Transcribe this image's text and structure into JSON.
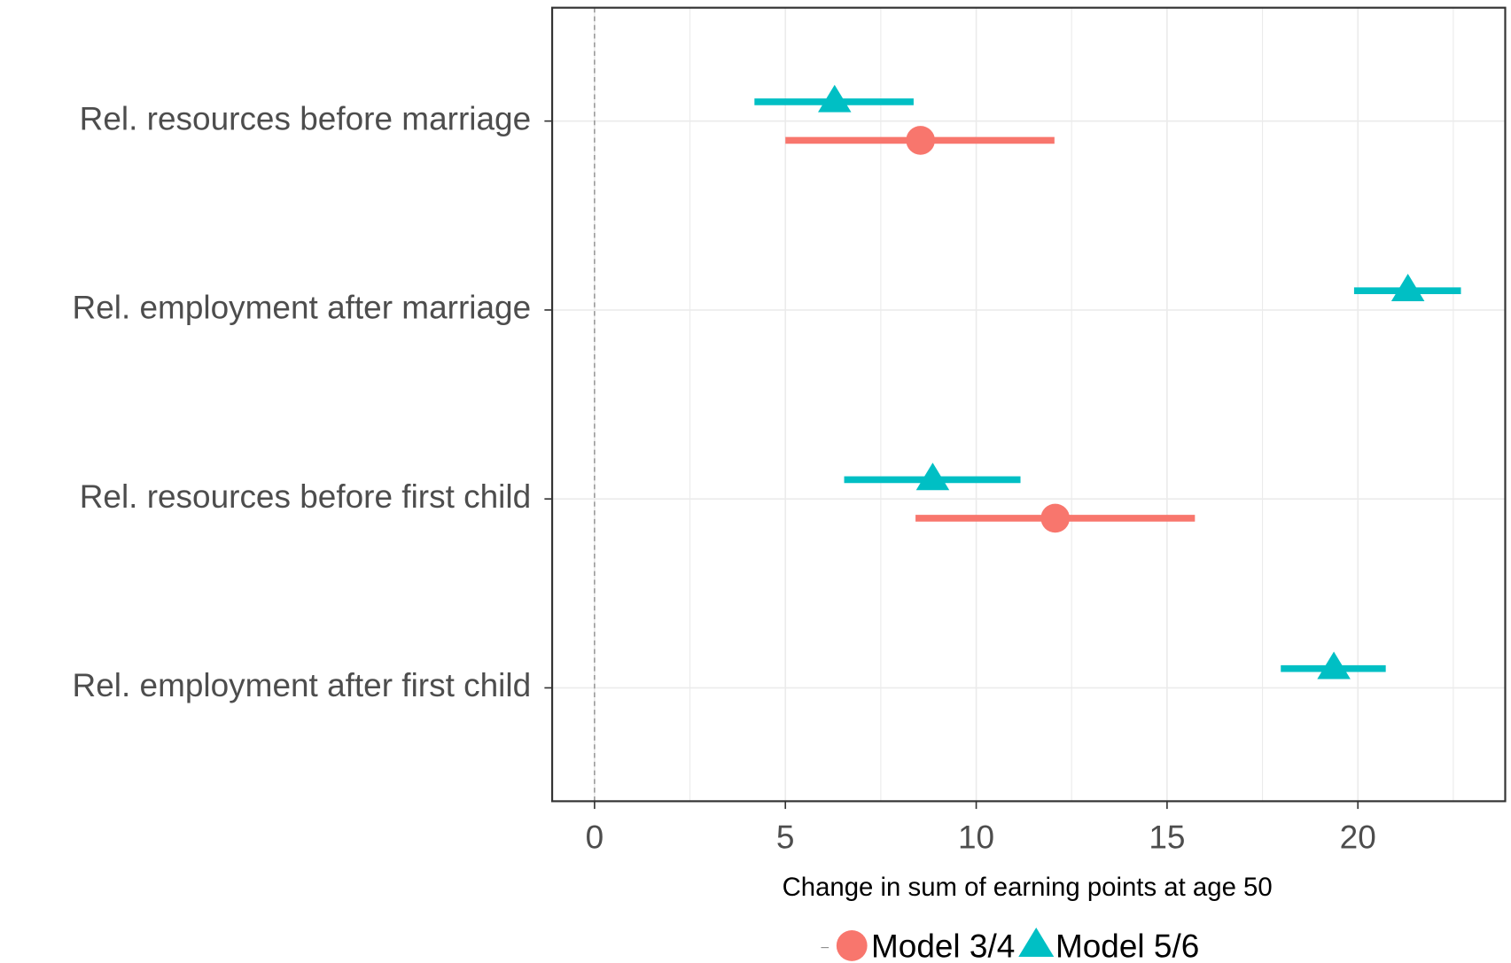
{
  "chart_data": {
    "type": "pointrange",
    "x_label": "Change in sum of earning points at age 50",
    "categories": [
      "Rel. resources before marriage",
      "Rel. employment after marriage",
      "Rel. resources before first child",
      "Rel. employment after first child"
    ],
    "xlim": [
      -1.11,
      23.86
    ],
    "xticks": [
      0,
      5,
      10,
      15,
      20
    ],
    "xminorticks": [
      2.5,
      7.5,
      12.5,
      17.5,
      22.5
    ],
    "vline": 0,
    "grid": true,
    "legend": "bottom",
    "series": [
      {
        "name": "Model 3/4",
        "color": "#F8766D",
        "shape": "circle",
        "values": [
          8.54,
          null,
          12.07,
          null
        ],
        "lower": [
          5.0,
          null,
          8.41,
          null
        ],
        "upper": [
          12.05,
          null,
          15.73,
          null
        ]
      },
      {
        "name": "Model 5/6",
        "color": "#00BFC4",
        "shape": "triangle",
        "values": [
          6.29,
          21.31,
          8.86,
          19.37
        ],
        "lower": [
          4.19,
          19.9,
          6.54,
          17.98
        ],
        "upper": [
          8.36,
          22.7,
          11.16,
          20.73
        ]
      }
    ]
  }
}
